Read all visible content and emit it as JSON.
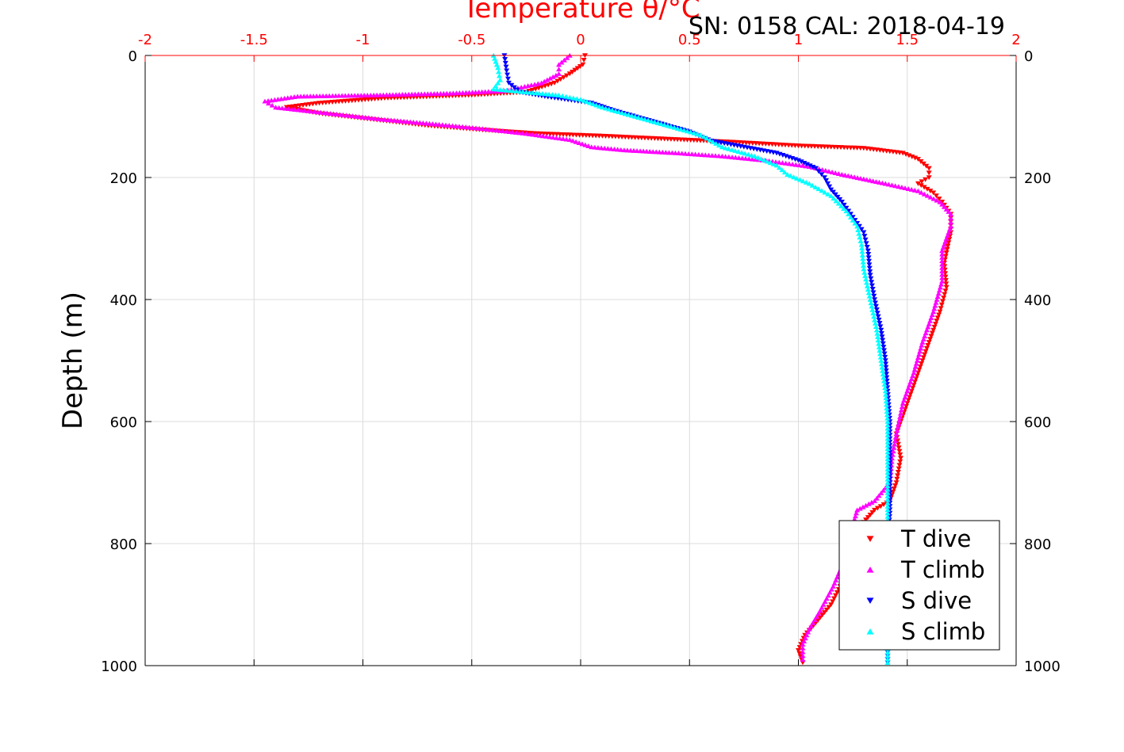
{
  "header": {
    "serial_cal": "SN: 0158  CAL: 2018-04-19"
  },
  "colors": {
    "axis_top": "#ff0000",
    "axis_black": "#000000",
    "grid": "#dcdcdc",
    "t_dive": "#ff0000",
    "t_climb": "#ff00ff",
    "s_dive": "#0000ff",
    "s_climb": "#00ffff"
  },
  "chart_data": {
    "type": "scatter",
    "title": "Temperature θ/°C",
    "xlabel": "Temperature θ/°C",
    "ylabel": "Depth (m)",
    "xlim": [
      -2,
      2
    ],
    "ylim": [
      0,
      1000
    ],
    "y_reversed": true,
    "grid": true,
    "legend_position": "bottom-right",
    "x_ticks": [
      "-2",
      "-1.5",
      "-1",
      "-0.5",
      "0",
      "0.5",
      "1",
      "1.5",
      "2"
    ],
    "x_tick_values": [
      -2,
      -1.5,
      -1,
      -0.5,
      0,
      0.5,
      1,
      1.5,
      2
    ],
    "y_ticks": [
      "0",
      "200",
      "400",
      "600",
      "800",
      "1000"
    ],
    "y_tick_values": [
      0,
      200,
      400,
      600,
      800,
      1000
    ],
    "series": [
      {
        "name": "T dive",
        "color": "#ff0000",
        "marker": "triangle-down",
        "points": [
          [
            0.02,
            0
          ],
          [
            0.01,
            15
          ],
          [
            -0.05,
            30
          ],
          [
            -0.12,
            45
          ],
          [
            -0.25,
            60
          ],
          [
            -0.5,
            65
          ],
          [
            -0.9,
            70
          ],
          [
            -1.2,
            78
          ],
          [
            -1.35,
            85
          ],
          [
            -1.2,
            95
          ],
          [
            -0.95,
            105
          ],
          [
            -0.7,
            115
          ],
          [
            -0.45,
            122
          ],
          [
            -0.2,
            128
          ],
          [
            0.1,
            132
          ],
          [
            0.4,
            137
          ],
          [
            0.7,
            142
          ],
          [
            1.0,
            148
          ],
          [
            1.3,
            152
          ],
          [
            1.48,
            160
          ],
          [
            1.55,
            170
          ],
          [
            1.6,
            185
          ],
          [
            1.6,
            200
          ],
          [
            1.55,
            210
          ],
          [
            1.62,
            225
          ],
          [
            1.66,
            240
          ],
          [
            1.7,
            260
          ],
          [
            1.7,
            290
          ],
          [
            1.67,
            340
          ],
          [
            1.68,
            380
          ],
          [
            1.65,
            420
          ],
          [
            1.6,
            470
          ],
          [
            1.55,
            520
          ],
          [
            1.5,
            570
          ],
          [
            1.45,
            620
          ],
          [
            1.47,
            660
          ],
          [
            1.45,
            700
          ],
          [
            1.42,
            730
          ],
          [
            1.35,
            745
          ],
          [
            1.3,
            765
          ],
          [
            1.28,
            800
          ],
          [
            1.22,
            850
          ],
          [
            1.15,
            900
          ],
          [
            1.08,
            930
          ],
          [
            1.03,
            950
          ],
          [
            1.0,
            975
          ],
          [
            1.02,
            995
          ]
        ]
      },
      {
        "name": "T climb",
        "color": "#ff00ff",
        "marker": "triangle-up",
        "points": [
          [
            -0.05,
            0
          ],
          [
            -0.1,
            15
          ],
          [
            -0.1,
            30
          ],
          [
            -0.18,
            45
          ],
          [
            -0.35,
            58
          ],
          [
            -0.6,
            62
          ],
          [
            -0.95,
            65
          ],
          [
            -1.3,
            67
          ],
          [
            -1.45,
            75
          ],
          [
            -1.4,
            85
          ],
          [
            -1.15,
            95
          ],
          [
            -0.9,
            105
          ],
          [
            -0.65,
            113
          ],
          [
            -0.45,
            120
          ],
          [
            -0.25,
            128
          ],
          [
            -0.05,
            138
          ],
          [
            0.05,
            150
          ],
          [
            0.2,
            155
          ],
          [
            0.45,
            160
          ],
          [
            0.65,
            165
          ],
          [
            0.85,
            172
          ],
          [
            1.05,
            182
          ],
          [
            1.2,
            195
          ],
          [
            1.4,
            210
          ],
          [
            1.55,
            222
          ],
          [
            1.65,
            240
          ],
          [
            1.7,
            260
          ],
          [
            1.7,
            280
          ],
          [
            1.66,
            320
          ],
          [
            1.66,
            370
          ],
          [
            1.62,
            420
          ],
          [
            1.57,
            470
          ],
          [
            1.53,
            520
          ],
          [
            1.48,
            570
          ],
          [
            1.45,
            620
          ],
          [
            1.43,
            660
          ],
          [
            1.42,
            700
          ],
          [
            1.35,
            730
          ],
          [
            1.27,
            745
          ],
          [
            1.25,
            770
          ],
          [
            1.22,
            820
          ],
          [
            1.16,
            870
          ],
          [
            1.1,
            910
          ],
          [
            1.05,
            940
          ],
          [
            1.02,
            965
          ],
          [
            1.02,
            990
          ]
        ]
      },
      {
        "name": "S dive",
        "color": "#0000ff",
        "marker": "triangle-down",
        "points": [
          [
            -0.35,
            0
          ],
          [
            -0.34,
            25
          ],
          [
            -0.33,
            45
          ],
          [
            -0.28,
            60
          ],
          [
            -0.15,
            68
          ],
          [
            0.05,
            78
          ],
          [
            0.15,
            90
          ],
          [
            0.3,
            105
          ],
          [
            0.5,
            125
          ],
          [
            0.6,
            140
          ],
          [
            0.75,
            150
          ],
          [
            0.9,
            160
          ],
          [
            1.0,
            172
          ],
          [
            1.08,
            185
          ],
          [
            1.12,
            200
          ],
          [
            1.15,
            220
          ],
          [
            1.2,
            240
          ],
          [
            1.25,
            265
          ],
          [
            1.3,
            290
          ],
          [
            1.32,
            320
          ],
          [
            1.33,
            360
          ],
          [
            1.35,
            400
          ],
          [
            1.38,
            450
          ],
          [
            1.4,
            500
          ],
          [
            1.41,
            550
          ],
          [
            1.42,
            600
          ],
          [
            1.42,
            650
          ],
          [
            1.42,
            700
          ],
          [
            1.42,
            750
          ],
          [
            1.41,
            800
          ],
          [
            1.41,
            850
          ],
          [
            1.41,
            900
          ],
          [
            1.41,
            950
          ],
          [
            1.41,
            995
          ]
        ]
      },
      {
        "name": "S climb",
        "color": "#00ffff",
        "marker": "triangle-up",
        "points": [
          [
            -0.4,
            0
          ],
          [
            -0.38,
            20
          ],
          [
            -0.37,
            40
          ],
          [
            -0.4,
            55
          ],
          [
            -0.1,
            65
          ],
          [
            0.0,
            72
          ],
          [
            0.1,
            85
          ],
          [
            0.25,
            100
          ],
          [
            0.4,
            115
          ],
          [
            0.55,
            130
          ],
          [
            0.65,
            150
          ],
          [
            0.8,
            165
          ],
          [
            0.9,
            180
          ],
          [
            0.95,
            195
          ],
          [
            1.05,
            210
          ],
          [
            1.15,
            230
          ],
          [
            1.22,
            255
          ],
          [
            1.27,
            280
          ],
          [
            1.29,
            310
          ],
          [
            1.3,
            350
          ],
          [
            1.33,
            400
          ],
          [
            1.36,
            450
          ],
          [
            1.38,
            500
          ],
          [
            1.4,
            550
          ],
          [
            1.41,
            600
          ],
          [
            1.41,
            650
          ],
          [
            1.41,
            700
          ],
          [
            1.41,
            750
          ],
          [
            1.41,
            800
          ],
          [
            1.41,
            850
          ],
          [
            1.41,
            900
          ],
          [
            1.41,
            950
          ],
          [
            1.41,
            995
          ]
        ]
      }
    ]
  }
}
